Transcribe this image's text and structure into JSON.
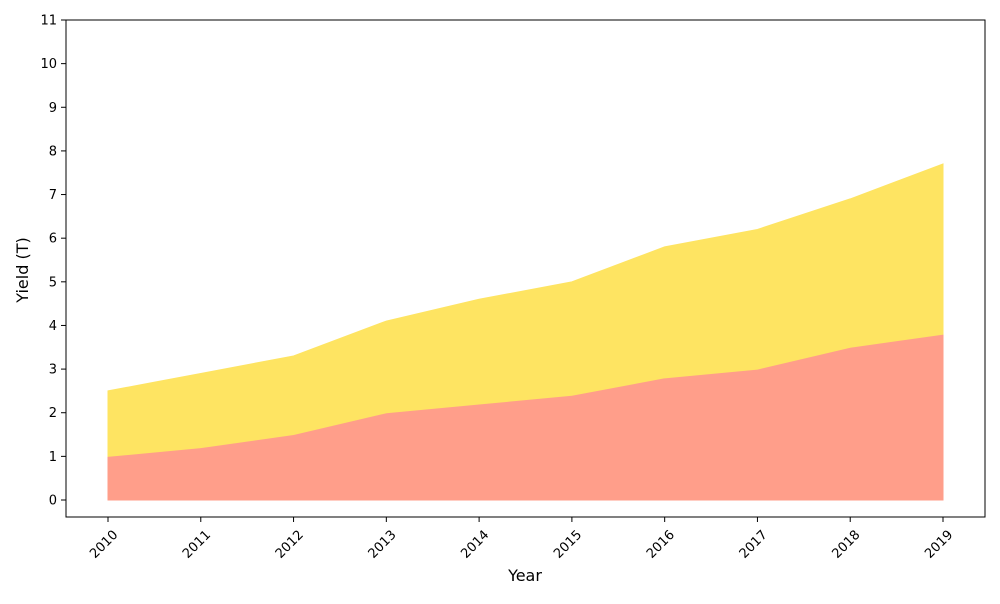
{
  "chart_data": {
    "type": "area",
    "stacked": true,
    "title": "",
    "xlabel": "Year",
    "ylabel": "Yield (T)",
    "x": [
      "2010",
      "2011",
      "2012",
      "2013",
      "2014",
      "2015",
      "2016",
      "2017",
      "2018",
      "2019"
    ],
    "ylim": [
      0,
      11
    ],
    "yticks": [
      "0",
      "1",
      "2",
      "3",
      "4",
      "5",
      "6",
      "7",
      "8",
      "9",
      "10",
      "11"
    ],
    "grid": false,
    "legend": "none",
    "x_tick_rotation": 45,
    "series": [
      {
        "values": [
          1.0,
          1.2,
          1.5,
          2.0,
          2.2,
          2.4,
          2.8,
          3.0,
          3.5,
          3.8
        ],
        "color": "#ff9e8a"
      },
      {
        "values": [
          1.5,
          1.7,
          1.8,
          2.1,
          2.4,
          2.6,
          3.0,
          3.2,
          3.4,
          3.9
        ],
        "color": "#fee462"
      }
    ]
  }
}
